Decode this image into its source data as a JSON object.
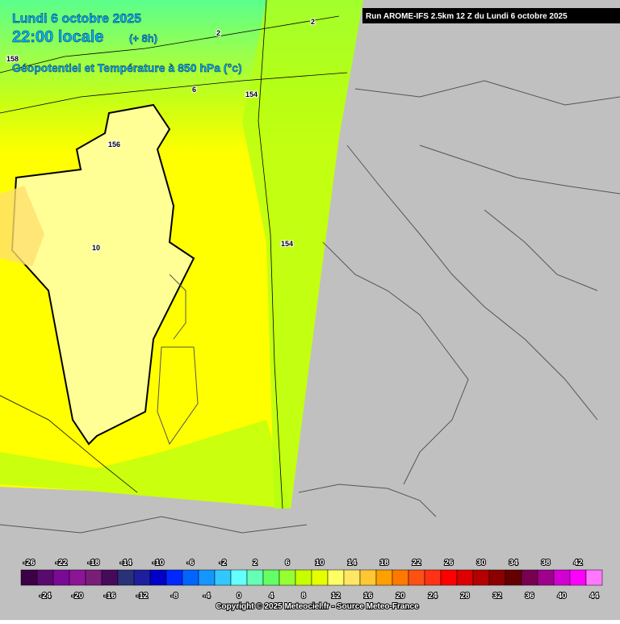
{
  "header": {
    "date": "Lundi 6 octobre 2025",
    "time": "22:00 locale",
    "offset": "(+ 8h)",
    "field": "Géopotentiel et Température à 850 hPa (°c)",
    "run": "Run AROME-IFS 2.5km 12 Z du Lundi 6 octobre 2025"
  },
  "contour_labels": [
    "158",
    "156",
    "154",
    "154",
    "10",
    "6",
    "2",
    "2"
  ],
  "legend": {
    "ticks": [
      -26,
      -24,
      -22,
      -20,
      -18,
      -16,
      -14,
      -12,
      -10,
      -8,
      -6,
      -4,
      -2,
      0,
      2,
      4,
      6,
      8,
      10,
      12,
      14,
      16,
      18,
      20,
      22,
      24,
      26,
      28,
      30,
      32,
      34,
      36,
      38,
      40,
      42,
      44
    ],
    "colors": [
      "#3c0046",
      "#5a0a6e",
      "#7a0a96",
      "#8c1496",
      "#781e78",
      "#460a5a",
      "#283278",
      "#1e1e9e",
      "#0000c8",
      "#0028ff",
      "#0064ff",
      "#1496ff",
      "#32c8ff",
      "#64ffff",
      "#64ffb4",
      "#64ff64",
      "#96ff32",
      "#c8ff00",
      "#e6ff00",
      "#ffff64",
      "#ffe664",
      "#ffc832",
      "#ffa000",
      "#ff7800",
      "#ff5014",
      "#ff3214",
      "#ff0000",
      "#dc0000",
      "#b40000",
      "#8c0000",
      "#640000",
      "#780050",
      "#a0008c",
      "#d200d2",
      "#ff00ff",
      "#ff78ff"
    ]
  },
  "footer": {
    "copyright": "Copyright © 2025 Meteociel.fr - Source Meteo-France"
  }
}
